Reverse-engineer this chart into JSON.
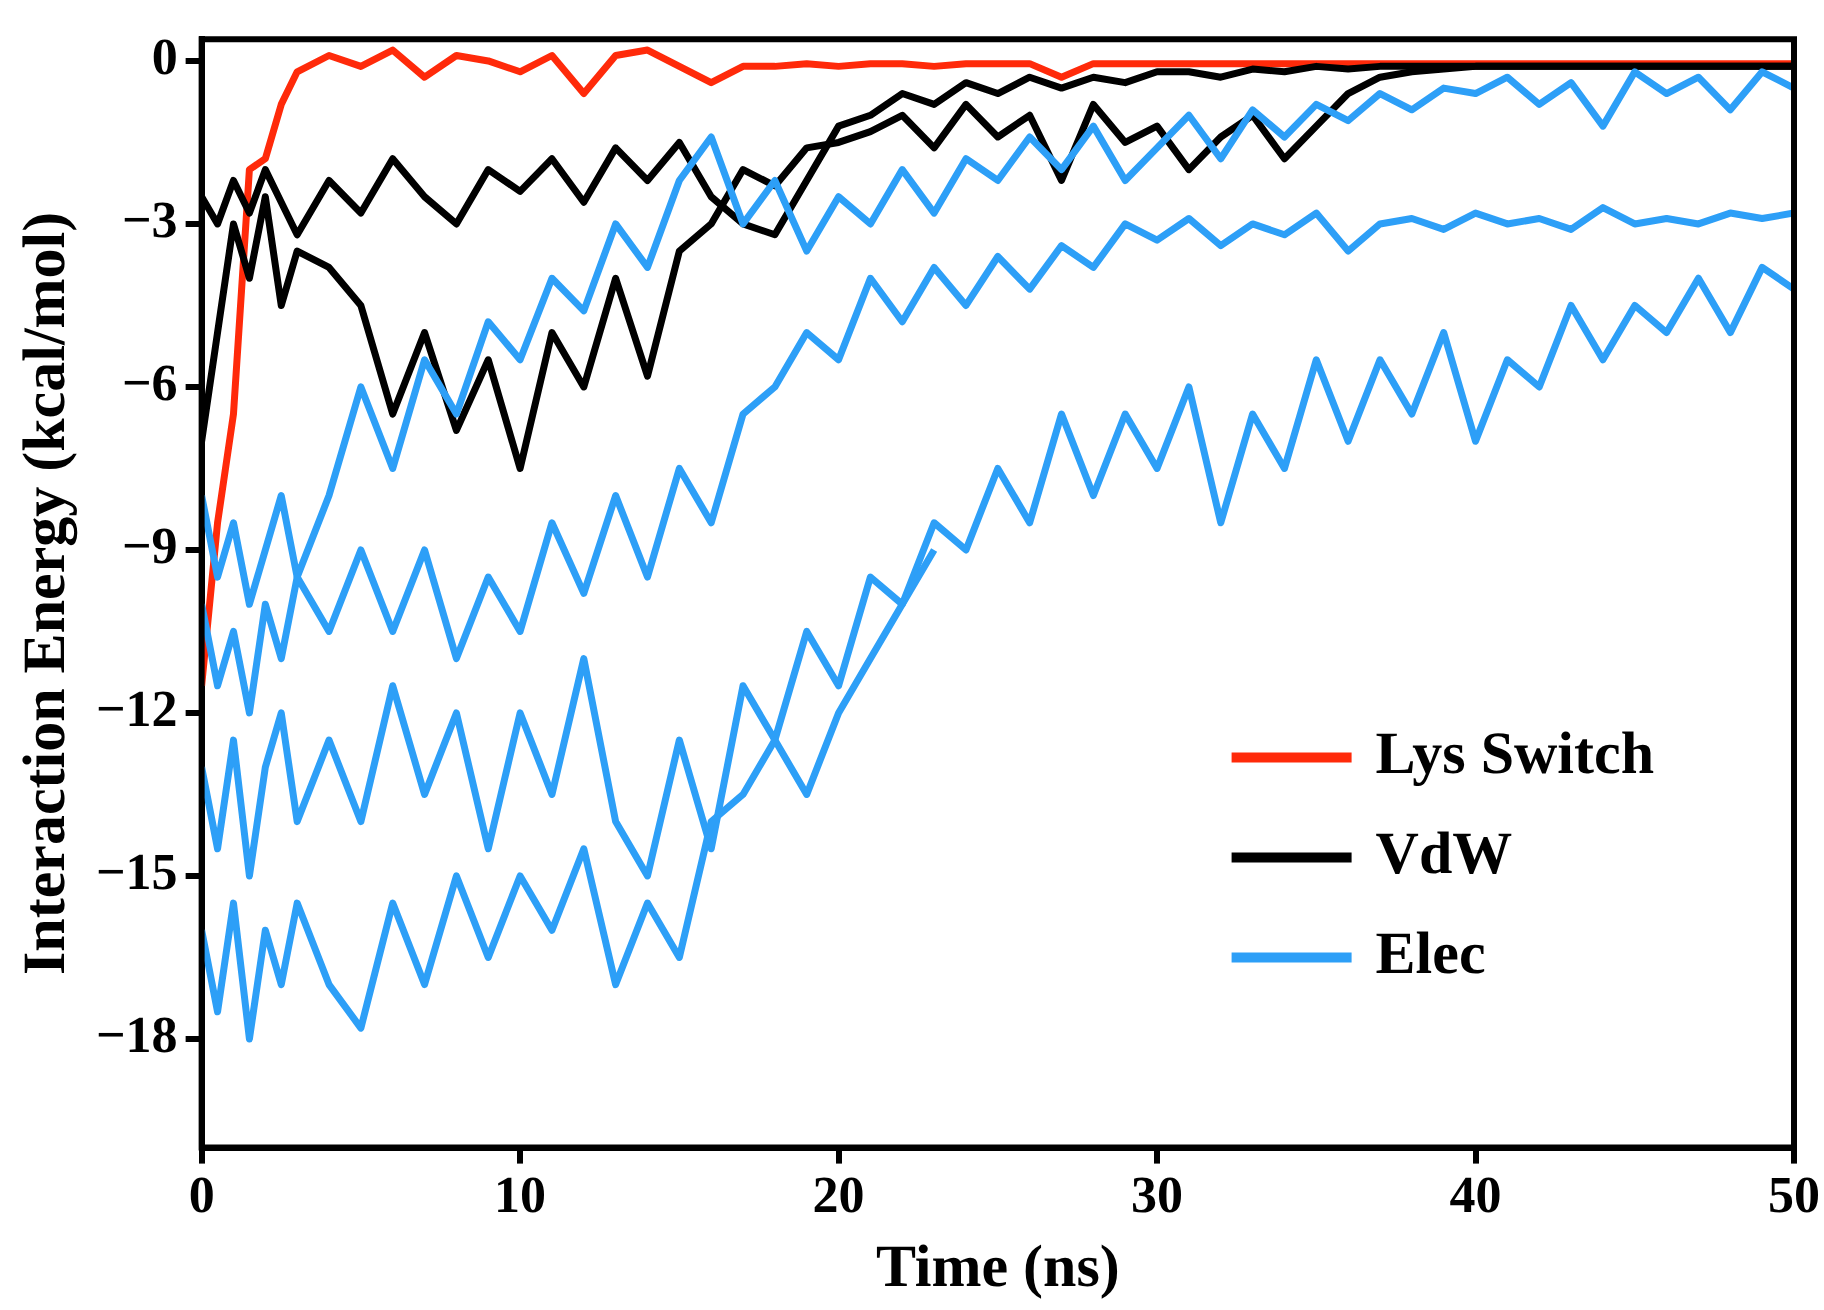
{
  "chart_data": {
    "type": "line",
    "xlabel": "Time (ns)",
    "ylabel": "Interaction Energy (kcal/mol)",
    "x": [
      0,
      0.5,
      1,
      1.5,
      2,
      2.5,
      3,
      4,
      5,
      6,
      7,
      8,
      9,
      10,
      11,
      12,
      13,
      14,
      15,
      16,
      17,
      18,
      19,
      20,
      21,
      22,
      23,
      24,
      25,
      26,
      27,
      28,
      29,
      30,
      31,
      32,
      33,
      34,
      35,
      36,
      37,
      38,
      39,
      40,
      41,
      42,
      43,
      44,
      45,
      46,
      47,
      48,
      49,
      50
    ],
    "xlim": [
      0,
      50
    ],
    "xticks": [
      0,
      10,
      20,
      30,
      40,
      50
    ],
    "ylim": [
      -20,
      0.4
    ],
    "yticks": [
      {
        "value": 0,
        "label": "0"
      },
      {
        "value": -3,
        "label": "−3"
      },
      {
        "value": -6,
        "label": "−6"
      },
      {
        "value": -9,
        "label": "−9"
      },
      {
        "value": -12,
        "label": "−12"
      },
      {
        "value": -15,
        "label": "−15"
      },
      {
        "value": -18,
        "label": "−18"
      }
    ],
    "grid": false,
    "legend": "bottom right",
    "marker": "none",
    "line_style": "solid",
    "series": [
      {
        "color": "#2d9ff7",
        "values": [
          -16,
          -17.5,
          -15.5,
          -18,
          -16,
          -17,
          -15.5,
          -17,
          -17.8,
          -15.5,
          -17,
          -15,
          -16.5,
          -15,
          -16,
          -14.5,
          -17,
          -15.5,
          -16.5,
          -14,
          -13.5,
          -12.5,
          -13.5,
          -12,
          -11,
          -10,
          -9,
          null,
          null,
          null,
          null,
          null,
          null,
          null,
          null,
          null,
          null,
          null,
          null,
          null,
          null,
          null,
          null,
          null,
          null,
          null,
          null,
          null,
          null,
          null,
          null,
          null,
          null,
          null
        ]
      },
      {
        "color": "#2d9ff7",
        "values": [
          -13,
          -14.5,
          -12.5,
          -15,
          -13,
          -12,
          -14,
          -12.5,
          -14,
          -11.5,
          -13.5,
          -12,
          -14.5,
          -12,
          -13.5,
          -11,
          -14,
          -15,
          -12.5,
          -14.5,
          -11.5,
          -12.5,
          -10.5,
          -11.5,
          -9.5,
          -10,
          -8.5,
          -9,
          -7.5,
          -8.5,
          -6.5,
          -8,
          -6.5,
          -7.5,
          -6,
          -8.5,
          -6.5,
          -7.5,
          -5.5,
          -7,
          -5.5,
          -6.5,
          -5,
          -7,
          -5.5,
          -6,
          -4.5,
          -5.5,
          -4.5,
          -5,
          -4,
          -5,
          -3.8,
          -4.2
        ]
      },
      {
        "color": "#2d9ff7",
        "values": [
          -10,
          -11.5,
          -10.5,
          -12,
          -10,
          -11,
          -9.5,
          -10.5,
          -9,
          -10.5,
          -9,
          -11,
          -9.5,
          -10.5,
          -8.5,
          -9.8,
          -8,
          -9.5,
          -7.5,
          -8.5,
          -6.5,
          -6,
          -5,
          -5.5,
          -4,
          -4.8,
          -3.8,
          -4.5,
          -3.6,
          -4.2,
          -3.4,
          -3.8,
          -3,
          -3.3,
          -2.9,
          -3.4,
          -3,
          -3.2,
          -2.8,
          -3.5,
          -3,
          -2.9,
          -3.1,
          -2.8,
          -3,
          -2.9,
          -3.1,
          -2.7,
          -3,
          -2.9,
          -3,
          -2.8,
          -2.9,
          -2.8
        ]
      },
      {
        "name": "Elec",
        "color": "#2d9ff7",
        "values": [
          -8,
          -9.5,
          -8.5,
          -10,
          -9,
          -8,
          -9.5,
          -8,
          -6,
          -7.5,
          -5.5,
          -6.5,
          -4.8,
          -5.5,
          -4,
          -4.6,
          -3,
          -3.8,
          -2.2,
          -1.4,
          -3,
          -2.2,
          -3.5,
          -2.5,
          -3,
          -2,
          -2.8,
          -1.8,
          -2.2,
          -1.4,
          -2,
          -1.2,
          -2.2,
          -1.6,
          -1,
          -1.8,
          -0.9,
          -1.4,
          -0.8,
          -1.1,
          -0.6,
          -0.9,
          -0.5,
          -0.6,
          -0.3,
          -0.8,
          -0.4,
          -1.2,
          -0.2,
          -0.6,
          -0.3,
          -0.9,
          -0.2,
          -0.5
        ]
      },
      {
        "color": "#000000",
        "values": [
          -7,
          -5,
          -3,
          -4,
          -2.5,
          -4.5,
          -3.5,
          -3.8,
          -4.5,
          -6.5,
          -5,
          -6.8,
          -5.5,
          -7.5,
          -5,
          -6,
          -4,
          -5.8,
          -3.5,
          -3,
          -2,
          -2.3,
          -1.6,
          -1.5,
          -1.3,
          -1,
          -1.6,
          -0.8,
          -1.4,
          -1,
          -2.2,
          -0.8,
          -1.5,
          -1.2,
          -2,
          -1.4,
          -1,
          -1.8,
          -1.2,
          -0.6,
          -0.3,
          -0.2,
          -0.15,
          -0.1,
          -0.1,
          -0.1,
          -0.1,
          -0.1,
          -0.1,
          -0.1,
          -0.1,
          -0.1,
          -0.1,
          -0.1
        ]
      },
      {
        "name": "VdW",
        "color": "#000000",
        "values": [
          -2.5,
          -3,
          -2.2,
          -2.8,
          -2,
          -2.6,
          -3.2,
          -2.2,
          -2.8,
          -1.8,
          -2.5,
          -3,
          -2,
          -2.4,
          -1.8,
          -2.6,
          -1.6,
          -2.2,
          -1.5,
          -2.5,
          -3,
          -3.2,
          -2.2,
          -1.2,
          -1,
          -0.6,
          -0.8,
          -0.4,
          -0.6,
          -0.3,
          -0.5,
          -0.3,
          -0.4,
          -0.2,
          -0.2,
          -0.3,
          -0.15,
          -0.2,
          -0.1,
          -0.15,
          -0.1,
          -0.1,
          -0.1,
          -0.1,
          -0.1,
          -0.1,
          -0.1,
          -0.1,
          -0.1,
          -0.1,
          -0.1,
          -0.1,
          -0.1,
          -0.1
        ]
      },
      {
        "name": "Lys Switch",
        "color": "#ff2a0a",
        "values": [
          -11.5,
          -8.5,
          -6.5,
          -2,
          -1.8,
          -0.8,
          -0.2,
          0.1,
          -0.1,
          0.2,
          -0.3,
          0.1,
          0,
          -0.2,
          0.1,
          -0.6,
          0.1,
          0.2,
          -0.1,
          -0.4,
          -0.1,
          -0.1,
          -0.05,
          -0.1,
          -0.05,
          -0.05,
          -0.1,
          -0.05,
          -0.05,
          -0.05,
          -0.3,
          -0.05,
          -0.05,
          -0.05,
          -0.05,
          -0.05,
          -0.05,
          -0.05,
          -0.05,
          -0.05,
          -0.05,
          -0.05,
          -0.05,
          -0.05,
          -0.05,
          -0.05,
          -0.05,
          -0.05,
          -0.05,
          -0.05,
          -0.05,
          -0.05,
          -0.05,
          -0.05
        ]
      }
    ]
  }
}
